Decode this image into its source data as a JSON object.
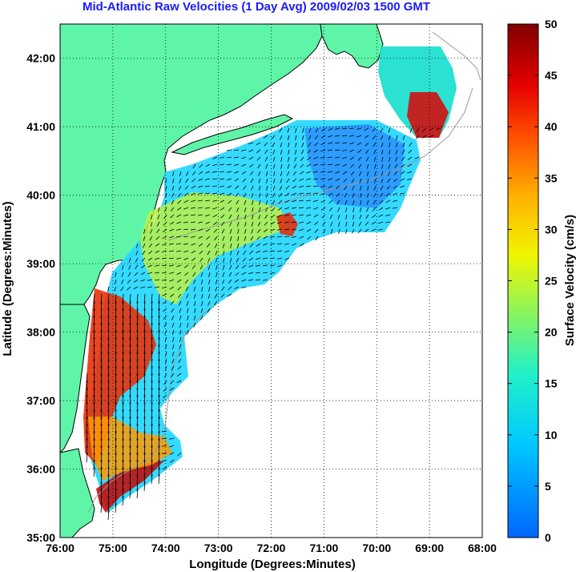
{
  "map": {
    "title": "Mid-Atlantic Raw Velocities (1 Day Avg) 2009/02/03 1500 GMT",
    "xlabel": "Longitude (Degrees:Minutes)",
    "ylabel": "Latitude (Degrees:Minutes)",
    "x_ticks": [
      "76:00",
      "75:00",
      "74:00",
      "73:00",
      "72:00",
      "71:00",
      "70:00",
      "69:00",
      "68:00"
    ],
    "y_ticks": [
      "35:00",
      "36:00",
      "37:00",
      "38:00",
      "39:00",
      "40:00",
      "41:00",
      "42:00"
    ],
    "x_range_deg": [
      -76,
      -68
    ],
    "y_range_deg": [
      35,
      42.5
    ],
    "grid": "dotted"
  },
  "colorbar": {
    "label": "Surface Velocity (cm/s)",
    "ticks": [
      "0",
      "5",
      "10",
      "15",
      "20",
      "25",
      "30",
      "35",
      "40",
      "45",
      "50"
    ],
    "range": [
      0,
      50
    ],
    "colormap": "jet"
  },
  "colors": {
    "land": "#5ff5a8",
    "title": "#1a1aff",
    "coast_line": "#000000",
    "bathymetry": "#999999"
  }
}
